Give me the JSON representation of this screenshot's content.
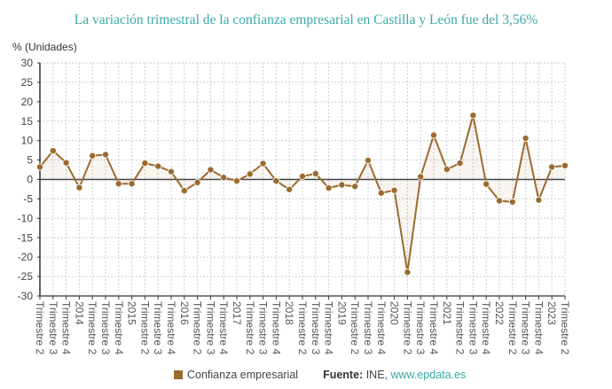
{
  "chart_data": {
    "type": "line",
    "title": "La variación trimestral de la confianza empresarial en Castilla y León fue del 3,56%",
    "ylabel": "% (Unidades)",
    "xlabel": "",
    "ylim": [
      -30,
      30
    ],
    "yticks": [
      30,
      25,
      20,
      15,
      10,
      5,
      0,
      -5,
      -10,
      -15,
      -20,
      -25,
      -30
    ],
    "grid": true,
    "legend_position": "bottom",
    "color": "#9b6a2d",
    "categories": [
      "Trimestre 2",
      "Trimestre 3",
      "Trimestre 4",
      "2014",
      "Trimestre 2",
      "Trimestre 3",
      "Trimestre 4",
      "2015",
      "Trimestre 2",
      "Trimestre 3",
      "Trimestre 4",
      "2016",
      "Trimestre 2",
      "Trimestre 3",
      "Trimestre 4",
      "2017",
      "Trimestre 2",
      "Trimestre 3",
      "Trimestre 4",
      "2018",
      "Trimestre 2",
      "Trimestre 3",
      "Trimestre 4",
      "2019",
      "Trimestre 2",
      "Trimestre 3",
      "Trimestre 4",
      "2020",
      "Trimestre 2",
      "Trimestre 3",
      "Trimestre 4",
      "2021",
      "Trimestre 2",
      "Trimestre 3",
      "Trimestre 4",
      "2022",
      "Trimestre 2",
      "Trimestre 3",
      "Trimestre 4",
      "2023",
      "Trimestre 2"
    ],
    "series": [
      {
        "name": "Confianza empresarial",
        "values": [
          3.2,
          7.4,
          4.3,
          -2.1,
          6.1,
          6.4,
          -1.1,
          -1.1,
          4.2,
          3.4,
          2.0,
          -2.9,
          -0.8,
          2.5,
          0.5,
          -0.4,
          1.4,
          4.1,
          -0.4,
          -2.6,
          0.8,
          1.5,
          -2.2,
          -1.4,
          -1.8,
          4.9,
          -3.5,
          -2.8,
          -23.9,
          0.7,
          11.4,
          2.6,
          4.2,
          16.5,
          -1.2,
          -5.5,
          -5.8,
          10.6,
          -5.3,
          3.2,
          3.56
        ]
      }
    ]
  },
  "legend": {
    "label": "Confianza empresarial"
  },
  "source": {
    "label": "Fuente:",
    "name": "INE, ",
    "link": "www.epdata.es"
  }
}
